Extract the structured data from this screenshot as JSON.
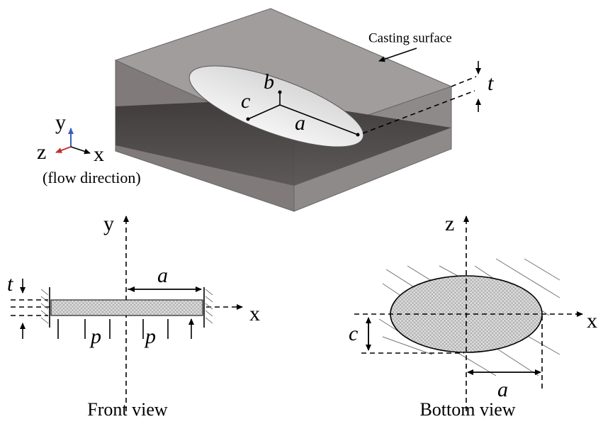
{
  "isometric": {
    "casting_surface": "Casting surface",
    "t": "t",
    "b": "b",
    "c": "c",
    "a": "a"
  },
  "axes_triad": {
    "y": "y",
    "z": "z",
    "x": "x",
    "note": "(flow direction)"
  },
  "front_view": {
    "y": "y",
    "x": "x",
    "t": "t",
    "a": "a",
    "p_left": "p",
    "p_right": "p",
    "caption": "Front view"
  },
  "bottom_view": {
    "z": "z",
    "x": "x",
    "c": "c",
    "a": "a",
    "caption": "Bottom view"
  }
}
